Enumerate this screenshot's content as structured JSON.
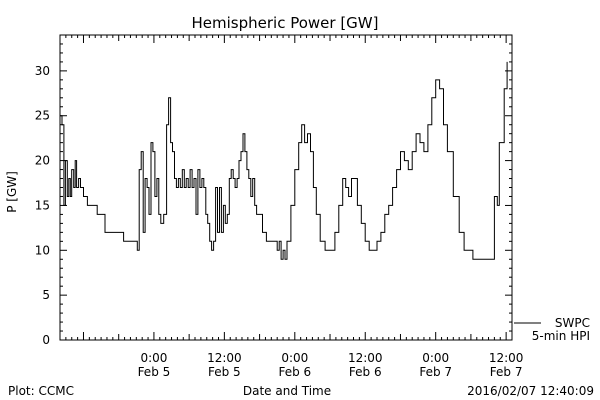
{
  "chart_data": {
    "type": "line",
    "title": "Hemispheric Power [GW]",
    "ylabel": "P [GW]",
    "xlabel": "Date and Time",
    "ylim": [
      0,
      34
    ],
    "xlim": [
      "2016-02-04T08:00",
      "2016-02-07T13:00"
    ],
    "grid": false,
    "y_ticks": [
      "0",
      "5",
      "10",
      "15",
      "20",
      "25",
      "30"
    ],
    "x_ticks": [
      {
        "at": "2016-02-05T00:00",
        "time": "0:00",
        "date": "Feb 5"
      },
      {
        "at": "2016-02-05T12:00",
        "time": "12:00",
        "date": "Feb 5"
      },
      {
        "at": "2016-02-06T00:00",
        "time": "0:00",
        "date": "Feb 6"
      },
      {
        "at": "2016-02-06T12:00",
        "time": "12:00",
        "date": "Feb 6"
      },
      {
        "at": "2016-02-07T00:00",
        "time": "0:00",
        "date": "Feb 7"
      },
      {
        "at": "2016-02-07T12:00",
        "time": "12:00",
        "date": "Feb 7"
      }
    ],
    "series": [
      {
        "name": "5-min HPI",
        "source": "SWPC",
        "color": "#000000",
        "points": [
          [
            "2016-02-04T08:05",
            25
          ],
          [
            "2016-02-04T08:20",
            24
          ],
          [
            "2016-02-04T08:40",
            15
          ],
          [
            "2016-02-04T08:55",
            20
          ],
          [
            "2016-02-04T09:15",
            16
          ],
          [
            "2016-02-04T09:30",
            18
          ],
          [
            "2016-02-04T09:45",
            16
          ],
          [
            "2016-02-04T10:00",
            19
          ],
          [
            "2016-02-04T10:20",
            17
          ],
          [
            "2016-02-04T10:35",
            20
          ],
          [
            "2016-02-04T10:50",
            17
          ],
          [
            "2016-02-04T11:10",
            18
          ],
          [
            "2016-02-04T11:30",
            17
          ],
          [
            "2016-02-04T12:00",
            16
          ],
          [
            "2016-02-04T12:40",
            15
          ],
          [
            "2016-02-04T13:30",
            15
          ],
          [
            "2016-02-04T14:20",
            14
          ],
          [
            "2016-02-04T15:00",
            14
          ],
          [
            "2016-02-04T15:40",
            12
          ],
          [
            "2016-02-04T16:40",
            12
          ],
          [
            "2016-02-04T17:50",
            12
          ],
          [
            "2016-02-04T18:50",
            11
          ],
          [
            "2016-02-04T20:30",
            11
          ],
          [
            "2016-02-04T21:10",
            10
          ],
          [
            "2016-02-04T21:30",
            19
          ],
          [
            "2016-02-04T21:50",
            21
          ],
          [
            "2016-02-04T22:10",
            12
          ],
          [
            "2016-02-04T22:30",
            18
          ],
          [
            "2016-02-04T22:50",
            17
          ],
          [
            "2016-02-04T23:10",
            14
          ],
          [
            "2016-02-04T23:30",
            22
          ],
          [
            "2016-02-04T23:50",
            21
          ],
          [
            "2016-02-05T00:10",
            16
          ],
          [
            "2016-02-05T00:30",
            18
          ],
          [
            "2016-02-05T00:50",
            14
          ],
          [
            "2016-02-05T01:10",
            13
          ],
          [
            "2016-02-05T01:40",
            14
          ],
          [
            "2016-02-05T02:10",
            24
          ],
          [
            "2016-02-05T02:30",
            27
          ],
          [
            "2016-02-05T02:50",
            22
          ],
          [
            "2016-02-05T03:10",
            21
          ],
          [
            "2016-02-05T03:30",
            18
          ],
          [
            "2016-02-05T03:50",
            17
          ],
          [
            "2016-02-05T04:10",
            18
          ],
          [
            "2016-02-05T04:30",
            17
          ],
          [
            "2016-02-05T04:50",
            19
          ],
          [
            "2016-02-05T05:10",
            17
          ],
          [
            "2016-02-05T05:30",
            18
          ],
          [
            "2016-02-05T05:50",
            17
          ],
          [
            "2016-02-05T06:10",
            19
          ],
          [
            "2016-02-05T06:30",
            17
          ],
          [
            "2016-02-05T06:50",
            18
          ],
          [
            "2016-02-05T07:10",
            14
          ],
          [
            "2016-02-05T07:30",
            19
          ],
          [
            "2016-02-05T07:50",
            17
          ],
          [
            "2016-02-05T08:10",
            18
          ],
          [
            "2016-02-05T08:30",
            17
          ],
          [
            "2016-02-05T08:50",
            14
          ],
          [
            "2016-02-05T09:10",
            13
          ],
          [
            "2016-02-05T09:30",
            11
          ],
          [
            "2016-02-05T09:50",
            10
          ],
          [
            "2016-02-05T10:10",
            11
          ],
          [
            "2016-02-05T10:30",
            17
          ],
          [
            "2016-02-05T10:50",
            12
          ],
          [
            "2016-02-05T11:10",
            17
          ],
          [
            "2016-02-05T11:30",
            12
          ],
          [
            "2016-02-05T11:50",
            15
          ],
          [
            "2016-02-05T12:10",
            13
          ],
          [
            "2016-02-05T12:30",
            14
          ],
          [
            "2016-02-05T12:50",
            18
          ],
          [
            "2016-02-05T13:10",
            19
          ],
          [
            "2016-02-05T13:30",
            18
          ],
          [
            "2016-02-05T13:50",
            17
          ],
          [
            "2016-02-05T14:10",
            18
          ],
          [
            "2016-02-05T14:30",
            20
          ],
          [
            "2016-02-05T14:50",
            21
          ],
          [
            "2016-02-05T15:10",
            23
          ],
          [
            "2016-02-05T15:30",
            21
          ],
          [
            "2016-02-05T15:50",
            19
          ],
          [
            "2016-02-05T16:10",
            18
          ],
          [
            "2016-02-05T16:30",
            16
          ],
          [
            "2016-02-05T16:50",
            18
          ],
          [
            "2016-02-05T17:10",
            15
          ],
          [
            "2016-02-05T17:30",
            14
          ],
          [
            "2016-02-05T18:00",
            14
          ],
          [
            "2016-02-05T18:30",
            12
          ],
          [
            "2016-02-05T19:10",
            11
          ],
          [
            "2016-02-05T19:50",
            11
          ],
          [
            "2016-02-05T20:30",
            11
          ],
          [
            "2016-02-05T21:00",
            10
          ],
          [
            "2016-02-05T21:20",
            11
          ],
          [
            "2016-02-05T21:40",
            9
          ],
          [
            "2016-02-05T22:00",
            10
          ],
          [
            "2016-02-05T22:20",
            9
          ],
          [
            "2016-02-05T22:40",
            11
          ],
          [
            "2016-02-05T23:20",
            15
          ],
          [
            "2016-02-06T00:00",
            19
          ],
          [
            "2016-02-06T00:40",
            22
          ],
          [
            "2016-02-06T01:10",
            24
          ],
          [
            "2016-02-06T01:40",
            22
          ],
          [
            "2016-02-06T02:10",
            23
          ],
          [
            "2016-02-06T02:40",
            21
          ],
          [
            "2016-02-06T03:10",
            17
          ],
          [
            "2016-02-06T03:40",
            14
          ],
          [
            "2016-02-06T04:20",
            11
          ],
          [
            "2016-02-06T05:10",
            10
          ],
          [
            "2016-02-06T06:10",
            10
          ],
          [
            "2016-02-06T06:50",
            12
          ],
          [
            "2016-02-06T07:30",
            15
          ],
          [
            "2016-02-06T08:10",
            18
          ],
          [
            "2016-02-06T08:40",
            17
          ],
          [
            "2016-02-06T09:10",
            16
          ],
          [
            "2016-02-06T09:40",
            18
          ],
          [
            "2016-02-06T10:10",
            18
          ],
          [
            "2016-02-06T10:40",
            15
          ],
          [
            "2016-02-06T11:20",
            13
          ],
          [
            "2016-02-06T12:00",
            11
          ],
          [
            "2016-02-06T12:40",
            10
          ],
          [
            "2016-02-06T13:20",
            10
          ],
          [
            "2016-02-06T14:00",
            11
          ],
          [
            "2016-02-06T14:40",
            12
          ],
          [
            "2016-02-06T15:20",
            14
          ],
          [
            "2016-02-06T16:00",
            15
          ],
          [
            "2016-02-06T16:40",
            17
          ],
          [
            "2016-02-06T17:20",
            19
          ],
          [
            "2016-02-06T18:00",
            21
          ],
          [
            "2016-02-06T18:40",
            20
          ],
          [
            "2016-02-06T19:20",
            19
          ],
          [
            "2016-02-06T20:00",
            21
          ],
          [
            "2016-02-06T20:40",
            23
          ],
          [
            "2016-02-06T21:20",
            22
          ],
          [
            "2016-02-06T22:00",
            21
          ],
          [
            "2016-02-06T22:40",
            24
          ],
          [
            "2016-02-06T23:20",
            27
          ],
          [
            "2016-02-07T00:00",
            29
          ],
          [
            "2016-02-07T00:40",
            28
          ],
          [
            "2016-02-07T01:20",
            24
          ],
          [
            "2016-02-07T02:00",
            21
          ],
          [
            "2016-02-07T03:00",
            16
          ],
          [
            "2016-02-07T04:00",
            12
          ],
          [
            "2016-02-07T04:50",
            10
          ],
          [
            "2016-02-07T05:30",
            10
          ],
          [
            "2016-02-07T06:20",
            9
          ],
          [
            "2016-02-07T09:20",
            9
          ],
          [
            "2016-02-07T10:00",
            16
          ],
          [
            "2016-02-07T10:30",
            15
          ],
          [
            "2016-02-07T10:50",
            22
          ],
          [
            "2016-02-07T11:20",
            22
          ],
          [
            "2016-02-07T11:40",
            28
          ],
          [
            "2016-02-07T12:10",
            31
          ]
        ]
      }
    ],
    "legend": {
      "position": "bottom-right",
      "line1": "SWPC",
      "line2": "5-min HPI"
    }
  },
  "footer": {
    "left": "Plot: CCMC",
    "right": "2016/02/07 12:40:09"
  }
}
